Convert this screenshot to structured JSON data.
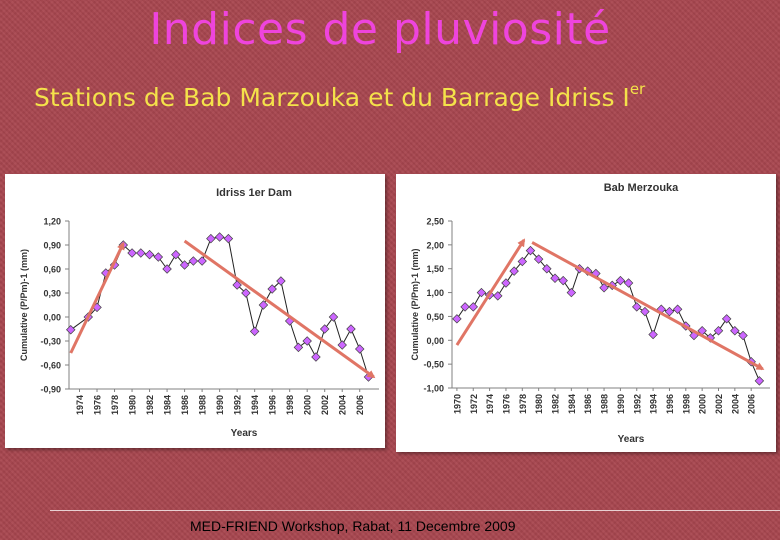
{
  "slide": {
    "title": "Indices de pluviosité",
    "subtitle": "Stations de Bab Marzouka et du Barrage Idriss I",
    "subtitle_sup": "er",
    "footer": "MED-FRIEND Workshop, Rabat, 11 Decembre 2009",
    "colors": {
      "title": "#ee44dd",
      "subtitle": "#f4e24a",
      "series_fill": "#cc66ff",
      "trend_arrow": "#e07565"
    }
  },
  "chart_data": [
    {
      "type": "line",
      "title": "Idriss 1er Dam",
      "xlabel": "Years",
      "ylabel": "Cumulative (P/Pm)-1 (mm)",
      "ylim": [
        -0.9,
        1.2
      ],
      "yticks": [
        1.2,
        0.9,
        0.6,
        0.3,
        0.0,
        -0.3,
        -0.6,
        -0.9
      ],
      "ytick_labels": [
        "1,20",
        "0,90",
        "0,60",
        "0,30",
        "0,00",
        "-0,30",
        "-0,60",
        "-0,90"
      ],
      "xticks": [
        1974,
        1976,
        1978,
        1980,
        1982,
        1984,
        1986,
        1988,
        1990,
        1992,
        1994,
        1996,
        1998,
        2000,
        2002,
        2004,
        2006
      ],
      "xtick_labels": [
        "1974",
        "1976",
        "1978",
        "1980",
        "1982",
        "1984",
        "1986",
        "1988",
        "1990",
        "1992",
        "1994",
        "1996",
        "1998",
        "2000",
        "2002",
        "2004",
        "2006"
      ],
      "xlim": [
        1972.8,
        2008.2
      ],
      "series": [
        {
          "x": [
            1973,
            1975,
            1976,
            1977,
            1978,
            1979,
            1980,
            1981,
            1982,
            1983,
            1984,
            1985,
            1986,
            1987,
            1988,
            1989,
            1990,
            1991,
            1992,
            1993,
            1994,
            1995,
            1996,
            1997,
            1998,
            1999,
            2000,
            2001,
            2002,
            2003,
            2004,
            2005,
            2006,
            2007
          ],
          "y": [
            -0.16,
            0.0,
            0.12,
            0.55,
            0.65,
            0.9,
            0.8,
            0.8,
            0.78,
            0.75,
            0.6,
            0.78,
            0.65,
            0.7,
            0.7,
            0.98,
            1.0,
            0.98,
            0.4,
            0.3,
            -0.18,
            0.15,
            0.35,
            0.45,
            -0.05,
            -0.38,
            -0.3,
            -0.5,
            -0.15,
            0.0,
            -0.35,
            -0.15,
            -0.4,
            -0.75
          ]
        }
      ],
      "trends": [
        {
          "from": [
            1973,
            -0.45
          ],
          "to": [
            1979,
            0.92
          ]
        },
        {
          "from": [
            1986,
            0.95
          ],
          "to": [
            2007.6,
            -0.75
          ]
        }
      ],
      "grid": false
    },
    {
      "type": "line",
      "title": "Bab Merzouka",
      "xlabel": "Years",
      "ylabel": "Cumulative (P/Pm)-1 (mm)",
      "ylim": [
        -1.0,
        2.5
      ],
      "yticks": [
        2.5,
        2.0,
        1.5,
        1.0,
        0.5,
        0.0,
        -0.5,
        -1.0
      ],
      "ytick_labels": [
        "2,50",
        "2,00",
        "1,50",
        "1,00",
        "0,50",
        "0,00",
        "-0,50",
        "-1,00"
      ],
      "xticks": [
        1970,
        1972,
        1974,
        1976,
        1978,
        1980,
        1982,
        1984,
        1986,
        1988,
        1990,
        1992,
        1994,
        1996,
        1998,
        2000,
        2002,
        2004,
        2006
      ],
      "xtick_labels": [
        "1970",
        "1972",
        "1974",
        "1976",
        "1978",
        "1980",
        "1982",
        "1984",
        "1986",
        "1988",
        "1990",
        "1992",
        "1994",
        "1996",
        "1998",
        "2000",
        "2002",
        "2004",
        "2006"
      ],
      "xlim": [
        1969.4,
        2008.3
      ],
      "series": [
        {
          "x": [
            1970,
            1971,
            1972,
            1973,
            1974,
            1975,
            1976,
            1977,
            1978,
            1979,
            1980,
            1981,
            1982,
            1983,
            1984,
            1985,
            1986,
            1987,
            1988,
            1989,
            1990,
            1991,
            1992,
            1993,
            1994,
            1995,
            1996,
            1997,
            1998,
            1999,
            2000,
            2001,
            2002,
            2003,
            2004,
            2005,
            2006,
            2007
          ],
          "y": [
            0.45,
            0.7,
            0.7,
            1.0,
            0.95,
            0.93,
            1.2,
            1.45,
            1.65,
            1.88,
            1.7,
            1.5,
            1.3,
            1.25,
            1.0,
            1.5,
            1.45,
            1.4,
            1.1,
            1.15,
            1.25,
            1.2,
            0.7,
            0.6,
            0.12,
            0.65,
            0.6,
            0.65,
            0.3,
            0.1,
            0.2,
            0.05,
            0.2,
            0.45,
            0.2,
            0.1,
            -0.45,
            -0.85
          ]
        }
      ],
      "trends": [
        {
          "from": [
            1970,
            -0.1
          ],
          "to": [
            1978.2,
            2.1
          ]
        },
        {
          "from": [
            1979.2,
            2.05
          ],
          "to": [
            2007.4,
            -0.6
          ]
        }
      ],
      "grid": false
    }
  ]
}
